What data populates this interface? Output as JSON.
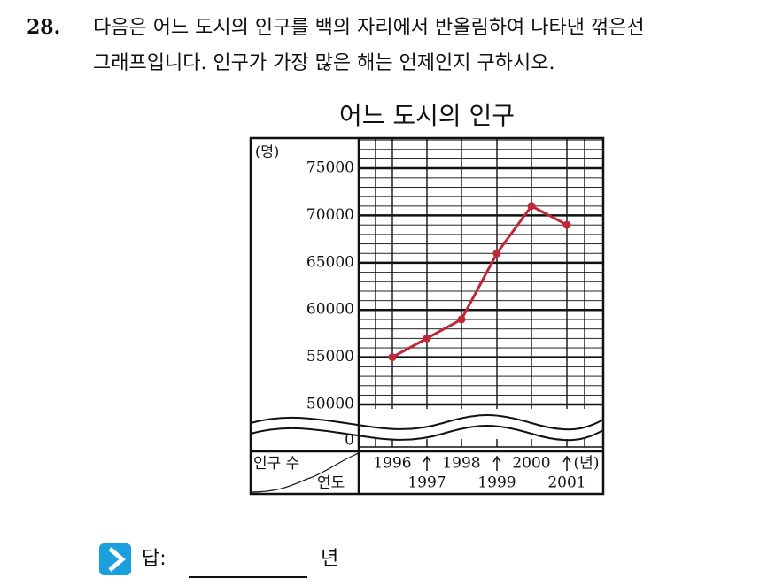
{
  "question": {
    "number": "28.",
    "lines": [
      "다음은 어느 도시의 인구를 백의 자리에서 반올림하여 나타낸 꺾은선",
      "그래프입니다. 인구가 가장 많은 해는 언제인지 구하시오."
    ]
  },
  "chart_data": {
    "type": "line",
    "title": "어느 도시의 인구",
    "y_unit": "(명)",
    "x_unit": "(년)",
    "row_header": "인구 수",
    "column_header": "연도",
    "categories": [
      "1996",
      "1997",
      "1998",
      "1999",
      "2000",
      "2001"
    ],
    "series": [
      {
        "name": "인구",
        "color": "#c0283a",
        "values": [
          55000,
          57000,
          59000,
          66000,
          71000,
          69000
        ]
      }
    ],
    "ylim": [
      50000,
      78000
    ],
    "yticks": [
      50000,
      55000,
      60000,
      65000,
      70000,
      75000
    ],
    "break_baseline": 0,
    "grid": true
  },
  "answer": {
    "label": "답:",
    "unit": "년"
  }
}
